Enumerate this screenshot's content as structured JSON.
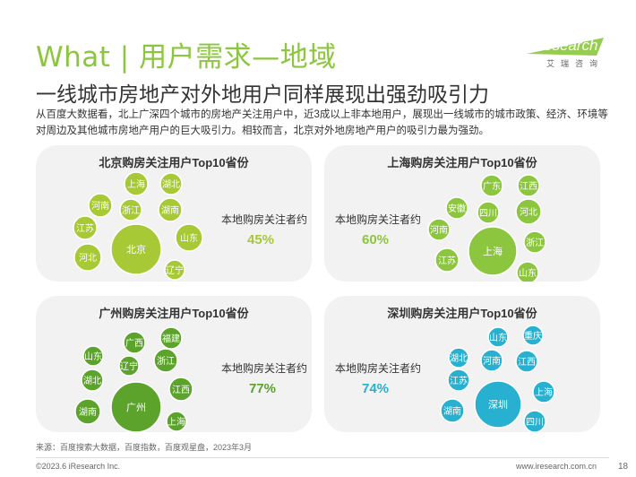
{
  "header": {
    "title": "What | 用户需求—地域",
    "logo_text_i": "i",
    "logo_text_rest": "Research",
    "logo_sub": "艾瑞咨询",
    "subtitle": "一线城市房地产对外地用户同样展现出强劲吸引力",
    "description": "从百度大数据看，北上广深四个城市的房地产关注用户中，近3成以上非本地用户，展现出一线城市的城市政策、经济、环境等对周边及其他城市房地产用户的巨大吸引力。相较而言，北京对外地房地产用户的吸引力最为强劲。"
  },
  "colors": {
    "green": "#a6c935",
    "dark_green": "#5ba32b",
    "teal": "#27b0cf",
    "cyan": "#1ec5f0",
    "panel_bg": "#f2f2f2"
  },
  "panels": [
    {
      "title": "北京购房关注用户Top10省份",
      "stat_label": "本地购房关注者约",
      "stat_value": "45%",
      "color": "#a6c935",
      "bubbles": [
        "北京",
        "上海",
        "湖北",
        "河南",
        "浙江",
        "湖南",
        "江苏",
        "山东",
        "河北",
        "辽宁"
      ]
    },
    {
      "title": "上海购房关注用户Top10省份",
      "stat_label": "本地购房关注者约",
      "stat_value": "60%",
      "color": "#8cc63f",
      "bubbles": [
        "上海",
        "广东",
        "江西",
        "安徽",
        "四川",
        "河北",
        "河南",
        "浙江",
        "江苏",
        "山东"
      ]
    },
    {
      "title": "广州购房关注用户Top10省份",
      "stat_label": "本地购房关注者约",
      "stat_value": "77%",
      "color": "#5ba32b",
      "bubbles": [
        "广州",
        "福建",
        "广西",
        "山东",
        "辽宁",
        "浙江",
        "湖北",
        "江西",
        "湖南",
        "上海"
      ]
    },
    {
      "title": "深圳购房关注用户Top10省份",
      "stat_label": "本地购房关注者约",
      "stat_value": "74%",
      "color": "#27b0cf",
      "bubbles": [
        "深圳",
        "山东",
        "重庆",
        "湖北",
        "河南",
        "江西",
        "江苏",
        "上海",
        "湖南",
        "四川"
      ]
    }
  ],
  "footer": {
    "source": "来源：百度搜索大数据，百度指数，百度观星盘，2023年3月",
    "copyright": "©2023.6 iResearch Inc.",
    "website": "www.iresearch.com.cn",
    "page": "18"
  }
}
